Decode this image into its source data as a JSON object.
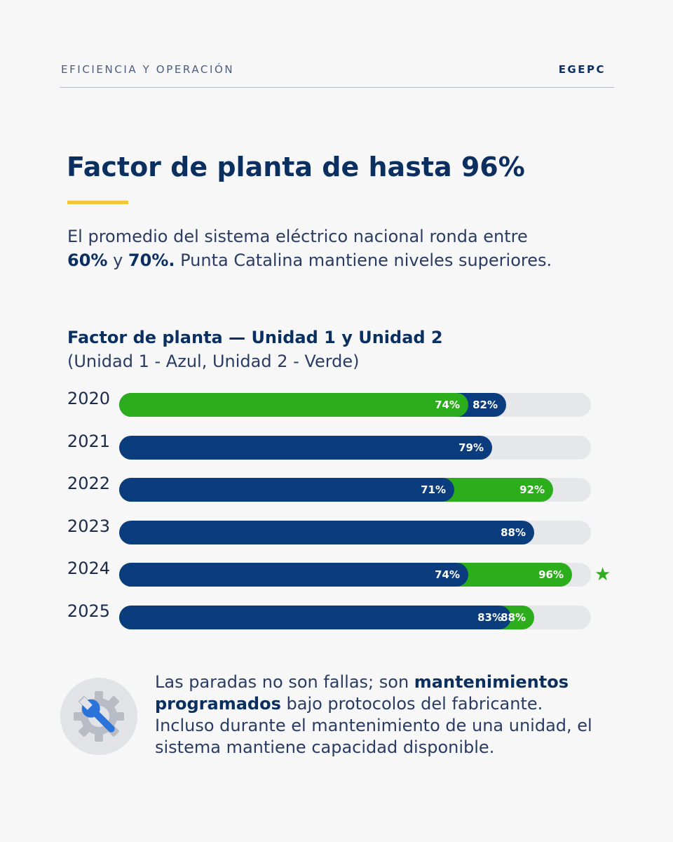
{
  "header": {
    "kicker": "EFICIENCIA Y OPERACIÓN",
    "brand": "EGEPC"
  },
  "title": "Factor de planta de hasta 96%",
  "intro": {
    "part1": "El promedio del sistema eléctrico nacional ronda entre ",
    "bold1": "60%",
    "part2": " y ",
    "bold2": "70%.",
    "part3": " Punta Catalina mantiene niveles superiores."
  },
  "chart_data": {
    "type": "bar",
    "orientation": "horizontal",
    "title": "Factor de planta — Unidad 1 y Unidad 2",
    "subtitle": "(Unidad 1 - Azul, Unidad 2 - Verde)",
    "categories": [
      "2020",
      "2021",
      "2022",
      "2023",
      "2024",
      "2025"
    ],
    "xlim": [
      0,
      100
    ],
    "series": [
      {
        "name": "Unidad 1",
        "color": "#0b3d7e",
        "values": [
          82,
          79,
          71,
          88,
          74,
          83
        ],
        "labels": [
          "82%",
          "79%",
          "71%",
          "88%",
          "74%",
          "83%"
        ]
      },
      {
        "name": "Unidad 2",
        "color": "#2cae1c",
        "values": [
          74,
          null,
          92,
          null,
          96,
          88
        ],
        "labels": [
          "74%",
          null,
          "92%",
          null,
          "96%",
          "88%"
        ]
      }
    ],
    "highlight": {
      "category": "2024",
      "marker": "★"
    }
  },
  "note": {
    "part1": "Las paradas no son fallas; son ",
    "bold1": "mantenimientos programados",
    "part2": " bajo protocolos del fabricante. Incluso durante el mantenimiento de una unidad, el sistema mantiene capacidad disponible.",
    "icon": "wrench-gear-icon"
  }
}
